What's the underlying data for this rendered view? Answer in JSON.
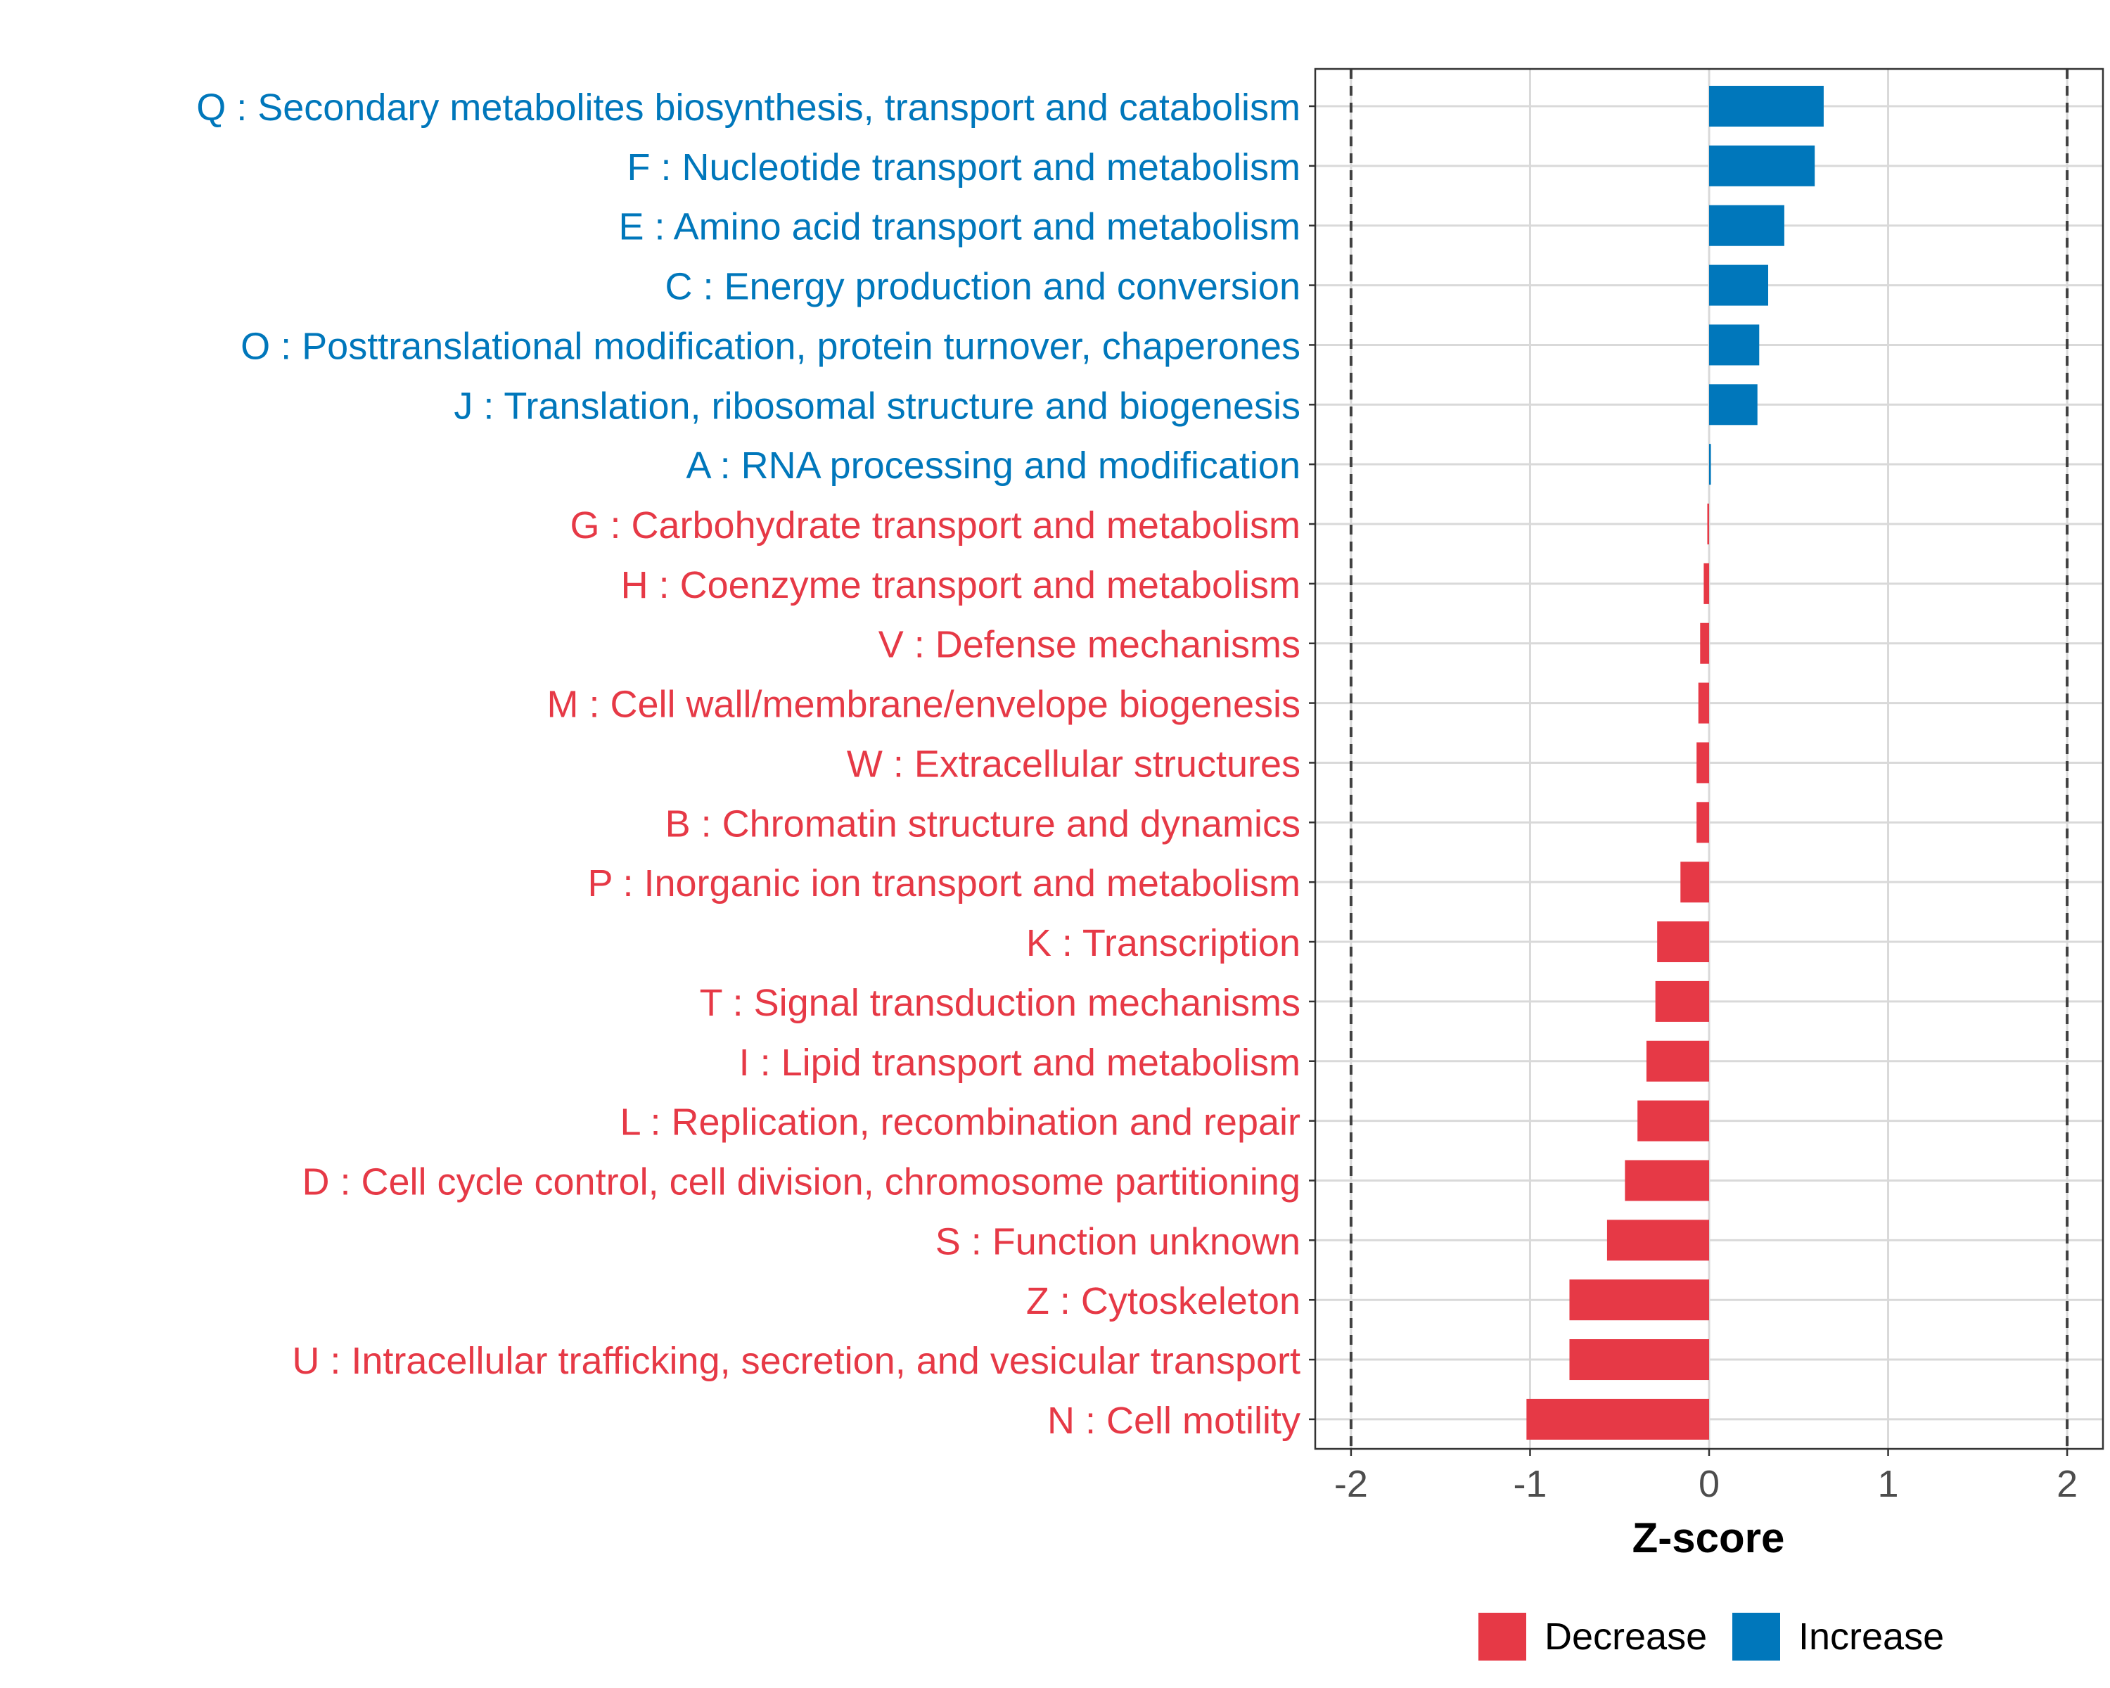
{
  "chart_data": {
    "type": "bar",
    "orientation": "horizontal",
    "title": "",
    "xlabel": "Z-score",
    "ylabel": "",
    "xlim": [
      -2.2,
      2.2
    ],
    "xticks": [
      "-2",
      "-1",
      "0",
      "1",
      "2"
    ],
    "xtick_values": [
      -2,
      -1,
      0,
      1,
      2
    ],
    "reference_lines": [
      -2,
      2
    ],
    "grid": true,
    "legend": {
      "position": "bottom",
      "entries": [
        {
          "label": "Decrease",
          "color": "#E63946"
        },
        {
          "label": "Increase",
          "color": "#0077BB"
        }
      ]
    },
    "categories": [
      {
        "label": "Q : Secondary metabolites biosynthesis, transport and catabolism",
        "value": 0.64,
        "direction": "Increase"
      },
      {
        "label": "F : Nucleotide transport and metabolism",
        "value": 0.59,
        "direction": "Increase"
      },
      {
        "label": "E : Amino acid transport and metabolism",
        "value": 0.42,
        "direction": "Increase"
      },
      {
        "label": "C : Energy production and conversion",
        "value": 0.33,
        "direction": "Increase"
      },
      {
        "label": "O : Posttranslational modification, protein turnover, chaperones",
        "value": 0.28,
        "direction": "Increase"
      },
      {
        "label": "J : Translation, ribosomal structure and biogenesis",
        "value": 0.27,
        "direction": "Increase"
      },
      {
        "label": "A : RNA processing and modification",
        "value": 0.01,
        "direction": "Increase"
      },
      {
        "label": "G : Carbohydrate transport and metabolism",
        "value": -0.01,
        "direction": "Decrease"
      },
      {
        "label": "H : Coenzyme transport and metabolism",
        "value": -0.03,
        "direction": "Decrease"
      },
      {
        "label": "V : Defense mechanisms",
        "value": -0.05,
        "direction": "Decrease"
      },
      {
        "label": "M : Cell wall/membrane/envelope biogenesis",
        "value": -0.06,
        "direction": "Decrease"
      },
      {
        "label": "W : Extracellular structures",
        "value": -0.07,
        "direction": "Decrease"
      },
      {
        "label": "B : Chromatin structure and dynamics",
        "value": -0.07,
        "direction": "Decrease"
      },
      {
        "label": "P : Inorganic ion transport and metabolism",
        "value": -0.16,
        "direction": "Decrease"
      },
      {
        "label": "K : Transcription",
        "value": -0.29,
        "direction": "Decrease"
      },
      {
        "label": "T : Signal transduction mechanisms",
        "value": -0.3,
        "direction": "Decrease"
      },
      {
        "label": "I : Lipid transport and metabolism",
        "value": -0.35,
        "direction": "Decrease"
      },
      {
        "label": "L : Replication, recombination and repair",
        "value": -0.4,
        "direction": "Decrease"
      },
      {
        "label": "D : Cell cycle control, cell division, chromosome partitioning",
        "value": -0.47,
        "direction": "Decrease"
      },
      {
        "label": "S : Function unknown",
        "value": -0.57,
        "direction": "Decrease"
      },
      {
        "label": "Z : Cytoskeleton",
        "value": -0.78,
        "direction": "Decrease"
      },
      {
        "label": "U : Intracellular trafficking, secretion, and vesicular transport",
        "value": -0.78,
        "direction": "Decrease"
      },
      {
        "label": "N : Cell motility",
        "value": -1.02,
        "direction": "Decrease"
      }
    ]
  }
}
